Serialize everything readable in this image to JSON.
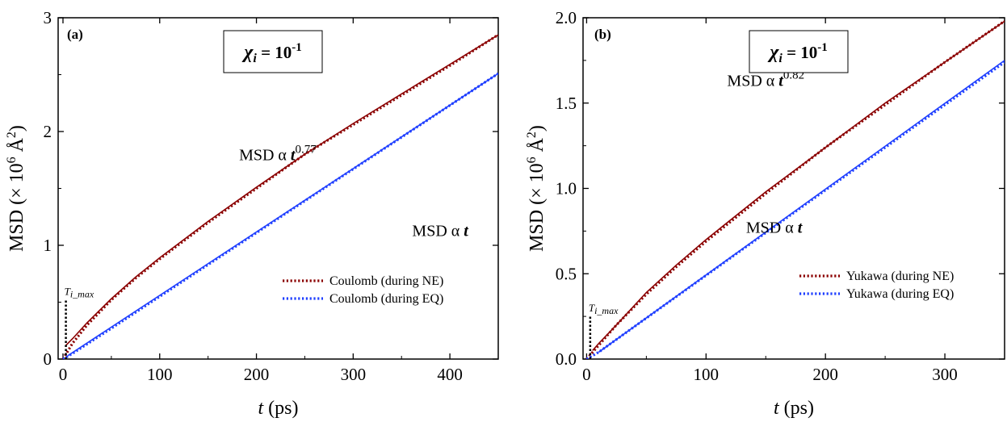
{
  "chart_data": [
    {
      "type": "line",
      "panel_label": "(a)",
      "inset": {
        "symbol": "χ",
        "subscript": "i",
        "eq": " = 10",
        "exponent": "-1"
      },
      "xlabel": {
        "italic": "t",
        "rest": " (ps)"
      },
      "ylabel": {
        "main": "MSD (× 10",
        "exp1": "6",
        "unit": " Å",
        "exp2": "2",
        "close": ")"
      },
      "xlim": [
        -5,
        450
      ],
      "ylim": [
        0,
        3
      ],
      "xticks": [
        0,
        100,
        200,
        300,
        400
      ],
      "xtick_labels": [
        "0",
        "100",
        "200",
        "300",
        "400"
      ],
      "yticks": [
        0,
        1,
        2,
        3
      ],
      "ytick_labels": [
        "0",
        "1",
        "2",
        "3"
      ],
      "series": [
        {
          "name": "Coulomb (during NE)",
          "color": "#8b0000",
          "style": "dotted",
          "x": [
            0,
            5,
            10,
            25,
            50,
            75,
            100,
            150,
            200,
            250,
            300,
            350,
            400,
            450
          ],
          "y": [
            0,
            0.07,
            0.14,
            0.3,
            0.52,
            0.71,
            0.88,
            1.2,
            1.5,
            1.8,
            2.06,
            2.32,
            2.58,
            2.85
          ]
        },
        {
          "name": "Coulomb (during EQ)",
          "color": "#1f3fff",
          "style": "dotted",
          "x": [
            0,
            10,
            50,
            100,
            150,
            200,
            250,
            300,
            350,
            400,
            450
          ],
          "y": [
            0,
            0.05,
            0.27,
            0.55,
            0.83,
            1.11,
            1.39,
            1.67,
            1.95,
            2.23,
            2.51
          ]
        }
      ],
      "fits": [
        {
          "color": "#8b0000",
          "x": [
            3,
            10,
            25,
            50,
            75,
            100,
            150,
            200,
            250,
            300,
            350,
            400,
            450
          ],
          "y": [
            0.12,
            0.18,
            0.32,
            0.53,
            0.72,
            0.89,
            1.21,
            1.51,
            1.8,
            2.07,
            2.33,
            2.59,
            2.85
          ]
        },
        {
          "color": "#1f3fff",
          "x": [
            5,
            450
          ],
          "y": [
            0.03,
            2.51
          ]
        }
      ],
      "annotations": [
        {
          "base": "MSD α ",
          "var": "t",
          "sup": "0.77",
          "at": [
            222,
            1.75
          ]
        },
        {
          "base": "MSD α ",
          "var": "t",
          "sup": "",
          "at": [
            390,
            1.08
          ]
        }
      ],
      "marker": {
        "label": "T",
        "sub": "i_max",
        "x": 3,
        "y": 0.52
      },
      "legend_position": "right-middle"
    },
    {
      "type": "line",
      "panel_label": "(b)",
      "inset": {
        "symbol": "χ",
        "subscript": "i",
        "eq": " = 10",
        "exponent": "-1"
      },
      "xlabel": {
        "italic": "t",
        "rest": " (ps)"
      },
      "ylabel": {
        "main": "MSD (× 10",
        "exp1": "6",
        "unit": " Å",
        "exp2": "2",
        "close": ")"
      },
      "xlim": [
        -3,
        350
      ],
      "ylim": [
        0,
        2
      ],
      "xticks": [
        0,
        100,
        200,
        300
      ],
      "xtick_labels": [
        "0",
        "100",
        "200",
        "300"
      ],
      "yticks": [
        0,
        0.5,
        1.0,
        1.5,
        2.0
      ],
      "ytick_labels": [
        "0.0",
        "0.5",
        "1.0",
        "1.5",
        "2.0"
      ],
      "series": [
        {
          "name": "Yukawa (during NE)",
          "color": "#8b0000",
          "style": "dotted",
          "x": [
            0,
            5,
            10,
            25,
            50,
            75,
            100,
            150,
            200,
            250,
            300,
            350
          ],
          "y": [
            0,
            0.04,
            0.08,
            0.2,
            0.38,
            0.54,
            0.69,
            0.97,
            1.24,
            1.49,
            1.74,
            1.98
          ]
        },
        {
          "name": "Yukawa (during EQ)",
          "color": "#1f3fff",
          "style": "dotted",
          "x": [
            0,
            10,
            50,
            100,
            150,
            200,
            250,
            300,
            350
          ],
          "y": [
            0,
            0.04,
            0.24,
            0.49,
            0.74,
            0.99,
            1.24,
            1.49,
            1.74
          ]
        }
      ],
      "fits": [
        {
          "color": "#8b0000",
          "x": [
            5,
            10,
            25,
            50,
            75,
            100,
            150,
            200,
            250,
            300,
            350
          ],
          "y": [
            0.05,
            0.09,
            0.2,
            0.39,
            0.55,
            0.7,
            0.98,
            1.24,
            1.5,
            1.74,
            1.98
          ]
        },
        {
          "color": "#1f3fff",
          "x": [
            10,
            350
          ],
          "y": [
            0.04,
            1.75
          ]
        }
      ],
      "annotations": [
        {
          "base": "MSD α ",
          "var": "t",
          "sup": "0.82",
          "at": [
            150,
            1.6
          ]
        },
        {
          "base": "MSD α ",
          "var": "t",
          "sup": "",
          "at": [
            157,
            0.74
          ]
        }
      ],
      "marker": {
        "label": "T",
        "sub": "i_max",
        "x": 3,
        "y": 0.25
      },
      "legend_position": "right-middle"
    }
  ]
}
